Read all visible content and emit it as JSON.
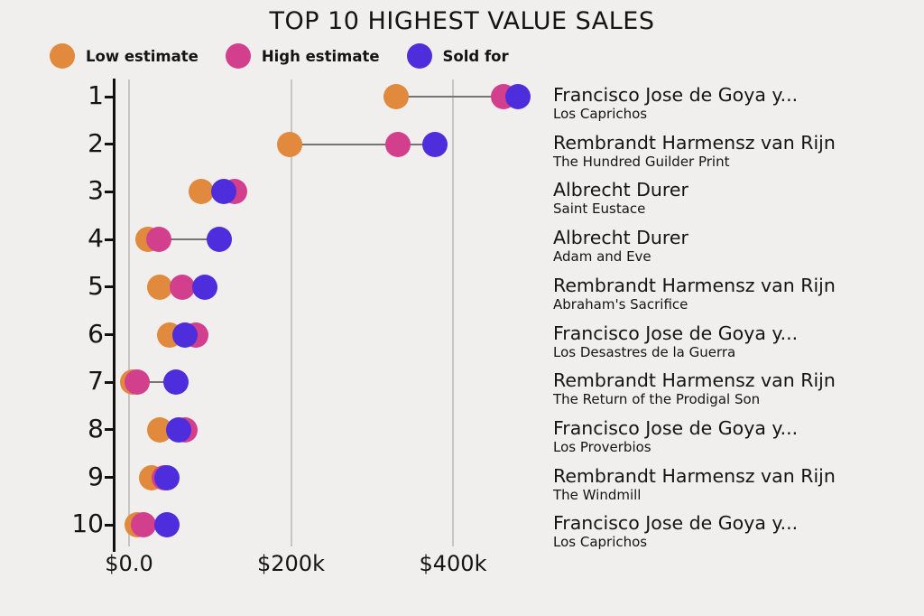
{
  "title": "TOP 10 HIGHEST VALUE SALES",
  "chart_data": {
    "type": "scatter",
    "variant": "horizontal-dumbbell-dot-plot",
    "title": "TOP 10 HIGHEST VALUE SALES",
    "background_color": "#f0efed",
    "gridline_color": "#c6c6c6",
    "connector_color": "#757575",
    "legend_position": "top-left",
    "series": [
      {
        "key": "low",
        "name": "Low estimate",
        "color": "#e1893c"
      },
      {
        "key": "high",
        "name": "High estimate",
        "color": "#d23f8d"
      },
      {
        "key": "sold",
        "name": "Sold for",
        "color": "#4e2edc"
      }
    ],
    "x_axis": {
      "unit": "USD",
      "tick_labels": [
        "$0.0",
        "$200k",
        "$400k"
      ],
      "tick_values": [
        0,
        200000,
        400000
      ],
      "range": [
        -18000,
        518000
      ],
      "gridlines": true
    },
    "y_axis": {
      "tick_labels": [
        "1",
        "2",
        "3",
        "4",
        "5",
        "6",
        "7",
        "8",
        "9",
        "10"
      ]
    },
    "rows": [
      {
        "rank": "1",
        "artist": "Francisco Jose de Goya y...",
        "work": "Los Caprichos",
        "low": 330000,
        "high": 462000,
        "sold": 480000
      },
      {
        "rank": "2",
        "artist": "Rembrandt Harmensz van Rijn",
        "work": "The Hundred Guilder Print",
        "low": 198000,
        "high": 332000,
        "sold": 378000
      },
      {
        "rank": "3",
        "artist": "Albrecht Durer",
        "work": "Saint Eustace",
        "low": 89000,
        "high": 130000,
        "sold": 117000
      },
      {
        "rank": "4",
        "artist": "Albrecht Durer",
        "work": "Adam and Eve",
        "low": 23000,
        "high": 37000,
        "sold": 111000
      },
      {
        "rank": "5",
        "artist": "Rembrandt Harmensz van Rijn",
        "work": "Abraham's Sacrifice",
        "low": 38000,
        "high": 66000,
        "sold": 94000
      },
      {
        "rank": "6",
        "artist": "Francisco Jose de Goya y...",
        "work": "Los Desastres de la Guerra",
        "low": 50000,
        "high": 83000,
        "sold": 69000
      },
      {
        "rank": "7",
        "artist": "Rembrandt Harmensz van Rijn",
        "work": "The Return of the Prodigal Son",
        "low": 4000,
        "high": 10000,
        "sold": 58000
      },
      {
        "rank": "8",
        "artist": "Francisco Jose de Goya y...",
        "work": "Los Proverbios",
        "low": 38000,
        "high": 69000,
        "sold": 61000
      },
      {
        "rank": "9",
        "artist": "Rembrandt Harmensz van Rijn",
        "work": "The Windmill",
        "low": 28000,
        "high": 43000,
        "sold": 47000
      },
      {
        "rank": "10",
        "artist": "Francisco Jose de Goya y...",
        "work": "Los Caprichos",
        "low": 10000,
        "high": 18000,
        "sold": 47000
      }
    ]
  }
}
